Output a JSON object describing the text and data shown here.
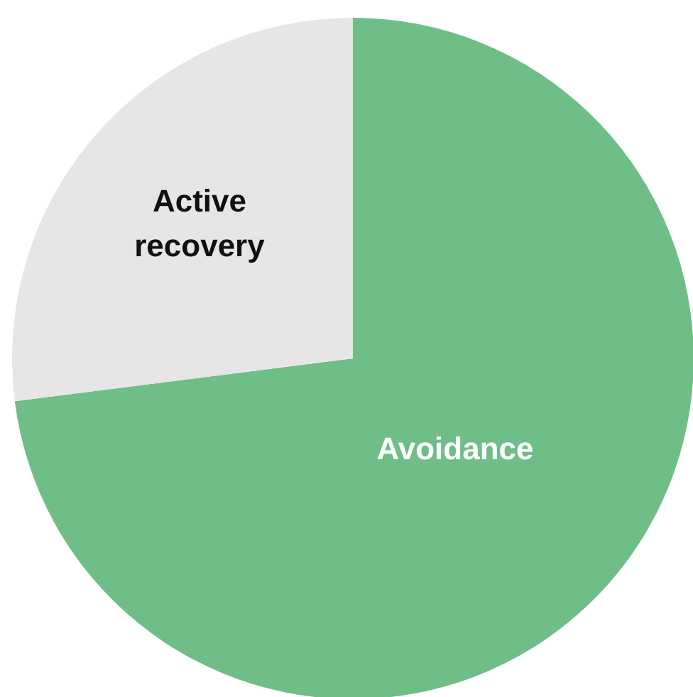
{
  "chart_data": {
    "type": "pie",
    "categories": [
      "Avoidance",
      "Active\nrecovery"
    ],
    "values": [
      73,
      27
    ],
    "colors": [
      "#6fbd87",
      "#e6e6e6"
    ]
  }
}
